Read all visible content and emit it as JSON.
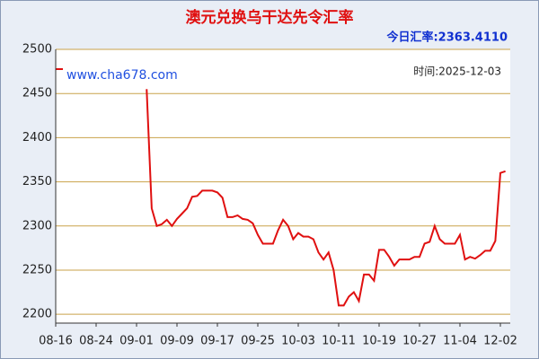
{
  "chart_data": {
    "type": "line",
    "title": "澳元兑换乌干达先令汇率",
    "current_rate": "今日汇率:2363.4110",
    "website": "www.cha678.com",
    "time": "时间:2025-12-03",
    "categories": [
      "08-16",
      null,
      null,
      null,
      null,
      null,
      null,
      null,
      "08-24",
      null,
      null,
      null,
      null,
      null,
      null,
      null,
      "09-01",
      null,
      null,
      null,
      null,
      null,
      null,
      null,
      "09-09",
      null,
      null,
      null,
      null,
      null,
      null,
      null,
      "09-17",
      null,
      null,
      null,
      null,
      null,
      null,
      null,
      "09-25",
      null,
      null,
      null,
      null,
      null,
      null,
      null,
      "10-03",
      null,
      null,
      null,
      null,
      null,
      null,
      null,
      "10-11",
      null,
      null,
      null,
      null,
      null,
      null,
      null,
      "10-19",
      null,
      null,
      null,
      null,
      null,
      null,
      null,
      "10-27",
      null,
      null,
      null,
      null,
      null,
      null,
      null,
      "11-04",
      null,
      null,
      null,
      null,
      null,
      null,
      null,
      "12-02",
      null
    ],
    "series": [
      {
        "name": "汇率",
        "color": "#e01010",
        "values": [
          null,
          null,
          null,
          null,
          null,
          null,
          null,
          null,
          null,
          null,
          null,
          null,
          null,
          null,
          null,
          null,
          null,
          null,
          2455,
          2320,
          2300,
          2302,
          2307,
          2300,
          2308,
          2314,
          2320,
          2333,
          2334,
          2340,
          2340,
          2340,
          2338,
          2332,
          2310,
          2310,
          2312,
          2308,
          2307,
          2303,
          2290,
          2280,
          2280,
          2280,
          2295,
          2307,
          2300,
          2285,
          2292,
          2288,
          2288,
          2285,
          2270,
          2262,
          2270,
          2250,
          2210,
          2210,
          2220,
          2225,
          2215,
          2245,
          2245,
          2238,
          2273,
          2273,
          2265,
          2255,
          2262,
          2262,
          2262,
          2265,
          2265,
          2280,
          2282,
          2300,
          2285,
          2280,
          2280,
          2280,
          2290,
          2262,
          2265,
          2263,
          2267,
          2272,
          2272,
          2283,
          2360,
          2362
        ]
      }
    ],
    "ylim": [
      2190,
      2500
    ],
    "yticks": [
      2200,
      2250,
      2300,
      2350,
      2400,
      2450,
      2500
    ],
    "grid": true
  }
}
